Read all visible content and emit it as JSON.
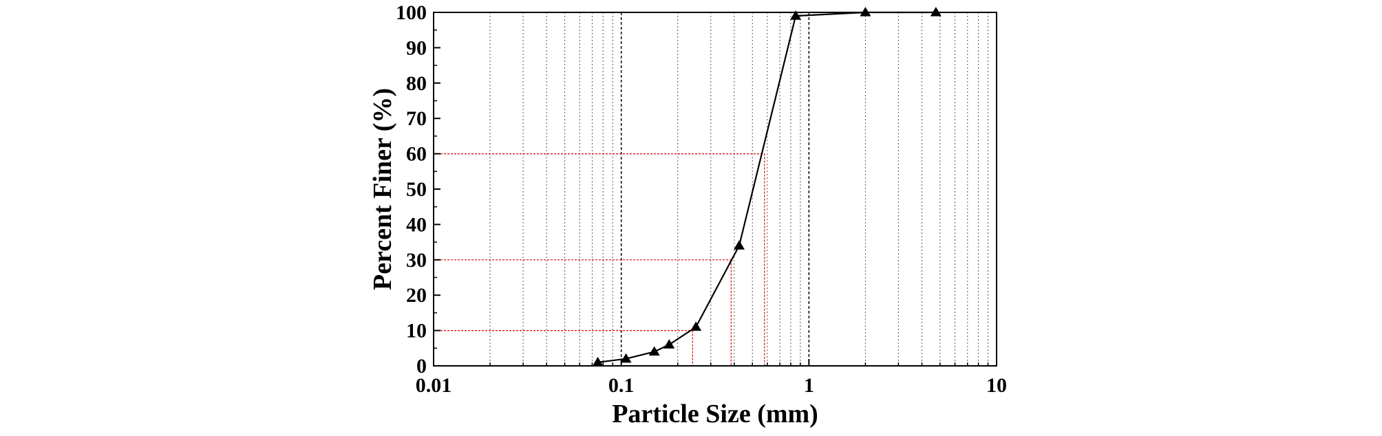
{
  "chart_data": {
    "type": "line",
    "title": "",
    "xlabel": "Particle Size (mm)",
    "ylabel": "Percent Finer (%)",
    "x_scale": "log",
    "xlim": [
      0.01,
      10
    ],
    "ylim": [
      0,
      100
    ],
    "x_tick_labels": [
      "0.01",
      "0.1",
      "1",
      "10"
    ],
    "x_tick_values": [
      0.01,
      0.1,
      1,
      10
    ],
    "y_tick_labels": [
      "0",
      "10",
      "20",
      "30",
      "40",
      "50",
      "60",
      "70",
      "80",
      "90",
      "100"
    ],
    "y_tick_values": [
      0,
      10,
      20,
      30,
      40,
      50,
      60,
      70,
      80,
      90,
      100
    ],
    "grid": "vertical dotted lines at log minor ticks",
    "legend": "none",
    "series": [
      {
        "marker": "triangle",
        "color": "#000000",
        "x": [
          0.075,
          0.106,
          0.15,
          0.18,
          0.25,
          0.425,
          0.85,
          2,
          4.75
        ],
        "y": [
          1,
          2,
          4,
          6,
          11,
          34,
          99,
          100,
          100
        ]
      }
    ],
    "reference_lines": {
      "color": "#e00000",
      "points": [
        {
          "x": 0.24,
          "y": 10
        },
        {
          "x": 0.385,
          "y": 30
        },
        {
          "x": 0.58,
          "y": 60
        }
      ]
    }
  }
}
